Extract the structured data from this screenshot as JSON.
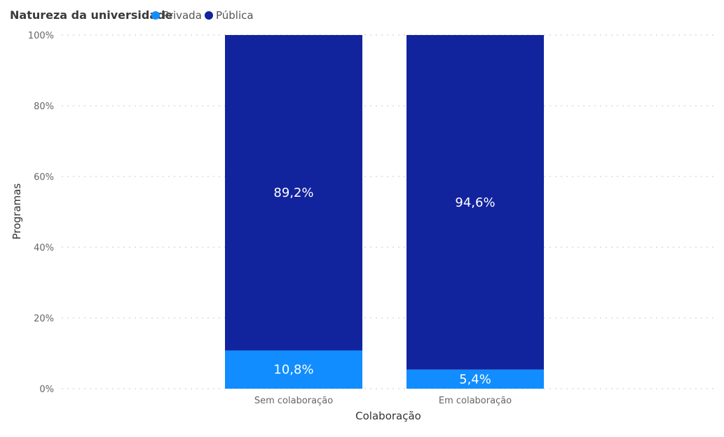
{
  "chart_data": {
    "type": "bar",
    "stacked": true,
    "legend": {
      "title": "Natureza da universidade",
      "placement": "top-left",
      "entries": [
        {
          "name": "Privada",
          "color": "#118dff"
        },
        {
          "name": "Pública",
          "color": "#12239e"
        }
      ]
    },
    "categories": [
      "Sem colaboração",
      "Em colaboração"
    ],
    "series": [
      {
        "name": "Privada",
        "color": "#118dff",
        "values": [
          10.8,
          5.4
        ],
        "labels": [
          "10,8%",
          "5,4%"
        ]
      },
      {
        "name": "Pública",
        "color": "#12239e",
        "values": [
          89.2,
          94.6
        ],
        "labels": [
          "89,2%",
          "94,6%"
        ]
      }
    ],
    "xlabel": "Colaboração",
    "ylabel": "Programas",
    "ylim": [
      0,
      100
    ],
    "yticks": [
      0,
      20,
      40,
      60,
      80,
      100
    ],
    "ytick_labels": [
      "0%",
      "20%",
      "40%",
      "60%",
      "80%",
      "100%"
    ],
    "grid": true
  }
}
